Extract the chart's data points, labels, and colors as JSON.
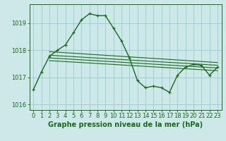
{
  "background_color": "#cce8e8",
  "grid_color": "#99cccc",
  "line_color": "#1a6b1a",
  "title": "Graphe pression niveau de la mer (hPa)",
  "xlabel_ticks": [
    0,
    1,
    2,
    3,
    4,
    5,
    6,
    7,
    8,
    9,
    10,
    11,
    12,
    13,
    14,
    15,
    16,
    17,
    18,
    19,
    20,
    21,
    22,
    23
  ],
  "ylim": [
    1015.8,
    1019.7
  ],
  "yticks": [
    1016,
    1017,
    1018,
    1019
  ],
  "main_series": [
    1016.55,
    1017.2,
    1017.78,
    1018.0,
    1018.2,
    1018.65,
    1019.12,
    1019.35,
    1019.28,
    1019.28,
    1018.82,
    1018.35,
    1017.72,
    1016.88,
    1016.62,
    1016.68,
    1016.62,
    1016.45,
    1017.08,
    1017.38,
    1017.48,
    1017.45,
    1017.08,
    1017.38
  ],
  "trend_lines": [
    {
      "x": [
        2,
        23
      ],
      "y": [
        1017.95,
        1017.55
      ]
    },
    {
      "x": [
        2,
        23
      ],
      "y": [
        1017.82,
        1017.45
      ]
    },
    {
      "x": [
        2,
        23
      ],
      "y": [
        1017.72,
        1017.35
      ]
    },
    {
      "x": [
        2,
        23
      ],
      "y": [
        1017.62,
        1017.25
      ]
    }
  ],
  "tick_fontsize": 6,
  "label_fontsize": 7,
  "figsize": [
    3.2,
    2.0
  ],
  "dpi": 100
}
